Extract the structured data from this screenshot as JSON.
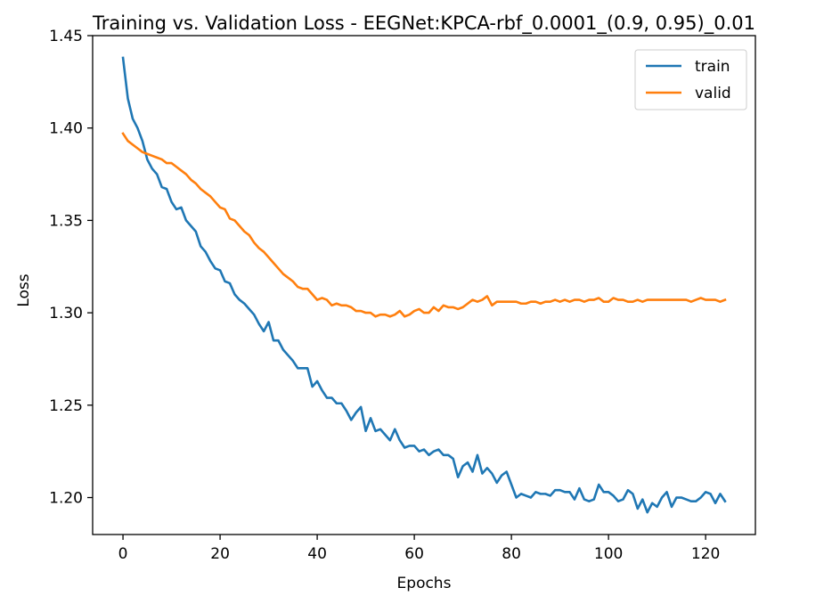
{
  "chart_data": {
    "type": "line",
    "title": "Training vs. Validation Loss - EEGNet:KPCA-rbf_0.0001_(0.9, 0.95)_0.01",
    "xlabel": "Epochs",
    "ylabel": "Loss",
    "xlim": [
      -6.25,
      130.25
    ],
    "ylim": [
      1.18,
      1.45
    ],
    "xticks": [
      0,
      20,
      40,
      60,
      80,
      100,
      120
    ],
    "yticks": [
      1.2,
      1.25,
      1.3,
      1.35,
      1.4,
      1.45
    ],
    "xtick_labels": [
      "0",
      "20",
      "40",
      "60",
      "80",
      "100",
      "120"
    ],
    "ytick_labels": [
      "1.20",
      "1.25",
      "1.30",
      "1.35",
      "1.40",
      "1.45"
    ],
    "legend_position": "top-right",
    "grid": false,
    "series": [
      {
        "name": "train",
        "color": "#1f77b4",
        "x_start": 0,
        "values": [
          1.438,
          1.416,
          1.405,
          1.4,
          1.393,
          1.383,
          1.378,
          1.375,
          1.368,
          1.367,
          1.36,
          1.356,
          1.357,
          1.35,
          1.347,
          1.344,
          1.336,
          1.333,
          1.328,
          1.324,
          1.323,
          1.317,
          1.316,
          1.31,
          1.307,
          1.305,
          1.302,
          1.299,
          1.294,
          1.29,
          1.295,
          1.285,
          1.285,
          1.28,
          1.277,
          1.274,
          1.27,
          1.27,
          1.27,
          1.26,
          1.263,
          1.258,
          1.254,
          1.254,
          1.251,
          1.251,
          1.247,
          1.242,
          1.246,
          1.249,
          1.236,
          1.243,
          1.236,
          1.237,
          1.234,
          1.231,
          1.237,
          1.231,
          1.227,
          1.228,
          1.228,
          1.225,
          1.226,
          1.223,
          1.225,
          1.226,
          1.223,
          1.223,
          1.221,
          1.211,
          1.217,
          1.219,
          1.214,
          1.223,
          1.213,
          1.216,
          1.213,
          1.208,
          1.212,
          1.214,
          1.207,
          1.2,
          1.202,
          1.201,
          1.2,
          1.203,
          1.202,
          1.202,
          1.201,
          1.204,
          1.204,
          1.203,
          1.203,
          1.199,
          1.205,
          1.199,
          1.198,
          1.199,
          1.207,
          1.203,
          1.203,
          1.201,
          1.198,
          1.199,
          1.204,
          1.202,
          1.194,
          1.199,
          1.192,
          1.197,
          1.195,
          1.2,
          1.203,
          1.195,
          1.2,
          1.2,
          1.199,
          1.198,
          1.198,
          1.2,
          1.203,
          1.202,
          1.197,
          1.202,
          1.198
        ]
      },
      {
        "name": "valid",
        "color": "#ff7f0e",
        "x_start": 0,
        "values": [
          1.397,
          1.393,
          1.391,
          1.389,
          1.387,
          1.386,
          1.385,
          1.384,
          1.383,
          1.381,
          1.381,
          1.379,
          1.377,
          1.375,
          1.372,
          1.37,
          1.367,
          1.365,
          1.363,
          1.36,
          1.357,
          1.356,
          1.351,
          1.35,
          1.347,
          1.344,
          1.342,
          1.338,
          1.335,
          1.333,
          1.33,
          1.327,
          1.324,
          1.321,
          1.319,
          1.317,
          1.314,
          1.313,
          1.313,
          1.31,
          1.307,
          1.308,
          1.307,
          1.304,
          1.305,
          1.304,
          1.304,
          1.303,
          1.301,
          1.301,
          1.3,
          1.3,
          1.298,
          1.299,
          1.299,
          1.298,
          1.299,
          1.301,
          1.298,
          1.299,
          1.301,
          1.302,
          1.3,
          1.3,
          1.303,
          1.301,
          1.304,
          1.303,
          1.303,
          1.302,
          1.303,
          1.305,
          1.307,
          1.306,
          1.307,
          1.309,
          1.304,
          1.306,
          1.306,
          1.306,
          1.306,
          1.306,
          1.305,
          1.305,
          1.306,
          1.306,
          1.305,
          1.306,
          1.306,
          1.307,
          1.306,
          1.307,
          1.306,
          1.307,
          1.307,
          1.306,
          1.307,
          1.307,
          1.308,
          1.306,
          1.306,
          1.308,
          1.307,
          1.307,
          1.306,
          1.306,
          1.307,
          1.306,
          1.307,
          1.307,
          1.307,
          1.307,
          1.307,
          1.307,
          1.307,
          1.307,
          1.307,
          1.306,
          1.307,
          1.308,
          1.307,
          1.307,
          1.307,
          1.306,
          1.307
        ]
      }
    ]
  }
}
